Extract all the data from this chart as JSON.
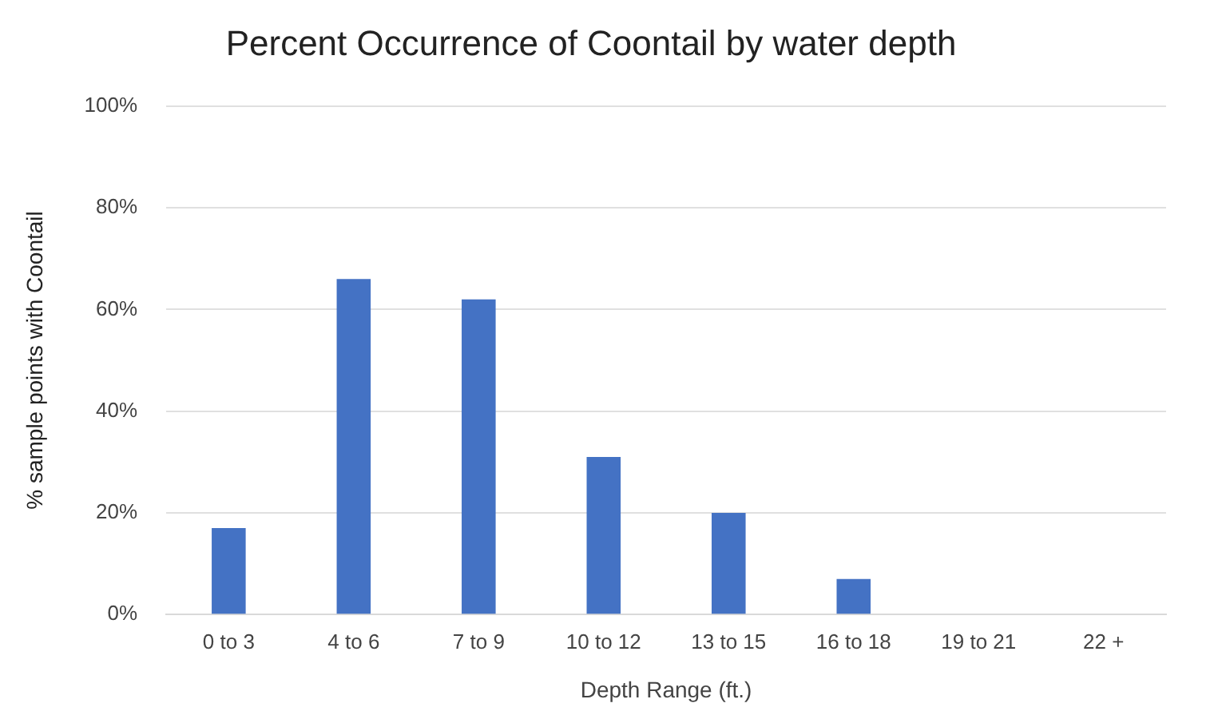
{
  "chart_data": {
    "type": "bar",
    "title": "Percent Occurrence of Coontail by water depth",
    "xlabel": "Depth Range (ft.)",
    "ylabel": "% sample points with Coontail",
    "categories": [
      "0 to 3",
      "4 to 6",
      "7 to 9",
      "10 to 12",
      "13 to 15",
      "16 to 18",
      "19 to 21",
      "22 +"
    ],
    "values": [
      17,
      66,
      62,
      31,
      20,
      7,
      0,
      0
    ],
    "color": "#4472c4",
    "ylim": [
      0,
      100
    ],
    "yticks": [
      {
        "value": 0,
        "label": "0%"
      },
      {
        "value": 20,
        "label": "20%"
      },
      {
        "value": 40,
        "label": "40%"
      },
      {
        "value": 60,
        "label": "60%"
      },
      {
        "value": 80,
        "label": "80%"
      },
      {
        "value": 100,
        "label": "100%"
      }
    ],
    "grid": "y",
    "legend": false
  }
}
